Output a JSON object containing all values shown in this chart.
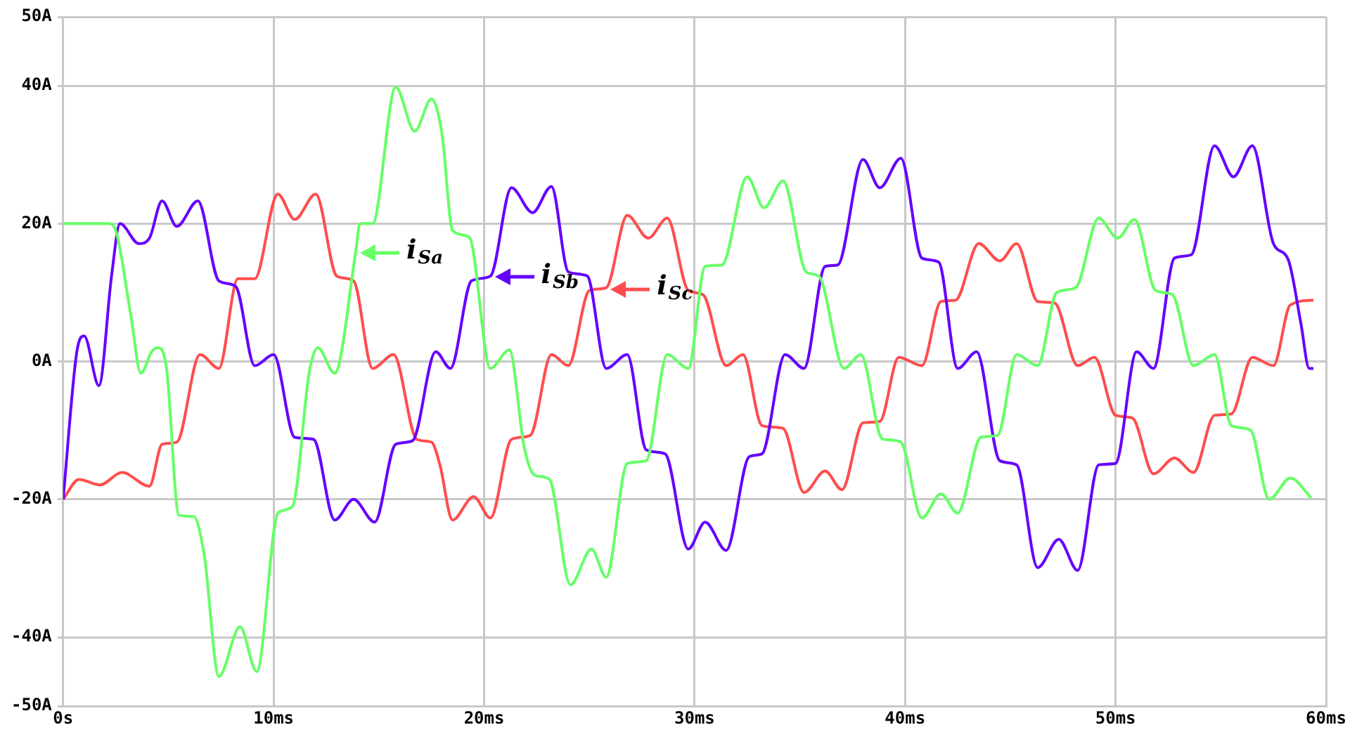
{
  "chart_data": {
    "type": "line",
    "xlim": [
      0,
      60
    ],
    "ylim": [
      -50,
      50
    ],
    "xticks": [
      {
        "value": 0,
        "label": "0s"
      },
      {
        "value": 10,
        "label": "10ms"
      },
      {
        "value": 20,
        "label": "20ms"
      },
      {
        "value": 30,
        "label": "30ms"
      },
      {
        "value": 40,
        "label": "40ms"
      },
      {
        "value": 50,
        "label": "50ms"
      },
      {
        "value": 60,
        "label": "60ms"
      }
    ],
    "yticks": [
      {
        "value": -50,
        "label": "-50A"
      },
      {
        "value": -40,
        "label": "-40A"
      },
      {
        "value": -20,
        "label": "-20A"
      },
      {
        "value": 0,
        "label": "0A"
      },
      {
        "value": 20,
        "label": "20A"
      },
      {
        "value": 40,
        "label": "40A"
      },
      {
        "value": 50,
        "label": "50A"
      }
    ],
    "grid": true,
    "legend": false,
    "marker": "none",
    "line_style": "solid",
    "annotations": [
      {
        "text": "i$_{Sa}$",
        "x": 13.9,
        "y": 15.9
      },
      {
        "text": "i$_{Sb}$",
        "x": 20.3,
        "y": 12.4
      },
      {
        "text": "i$_{Sc}$",
        "x": 25.8,
        "y": 10.7
      }
    ],
    "series": [
      {
        "color": "#66ff66",
        "x": [
          0,
          2.15,
          2.5,
          3.2,
          3.7,
          4.2,
          4.5,
          4.9,
          5.5,
          6.2,
          6.7,
          7.4,
          8.4,
          9.2,
          10.2,
          10.9,
          11.7,
          12.1,
          12.9,
          13.9,
          14.1,
          14.7,
          15.8,
          16.7,
          17.5,
          18.0,
          18.5,
          19.3,
          20.3,
          21.2,
          21.9,
          22.4,
          23.1,
          24.1,
          25.1,
          25.8,
          26.8,
          27.7,
          28.7,
          29.7,
          30.5,
          31.3,
          32.5,
          33.3,
          34.2,
          35.3,
          35.9,
          37.1,
          37.9,
          38.8,
          39.0,
          39.8,
          40.8,
          41.7,
          42.5,
          43.6,
          44.4,
          45.3,
          46.3,
          47.2,
          48.1,
          49.2,
          50.1,
          50.9,
          51.9,
          52.7,
          53.7,
          54.7,
          55.5,
          56.4,
          57.3,
          58.3,
          59.3
        ],
        "values": [
          20,
          20,
          19,
          7,
          -1.7,
          1.4,
          2,
          -0.7,
          -22.3,
          -22.5,
          -28,
          -45.7,
          -38.5,
          -45,
          -22,
          -21,
          -1.4,
          2,
          -1.7,
          15.9,
          20,
          20,
          39.8,
          33.4,
          38.1,
          33,
          19,
          18,
          -1,
          1.7,
          -12.4,
          -16.5,
          -17.1,
          -32.4,
          -27.2,
          -31.3,
          -14.8,
          -14.4,
          1,
          -1,
          13.8,
          14,
          26.8,
          22.3,
          26.2,
          13,
          12.4,
          -1,
          1,
          -10.7,
          -11.3,
          -11.7,
          -22.7,
          -19.2,
          -22,
          -11,
          -10.7,
          1,
          -0.6,
          10,
          10.7,
          20.8,
          17.9,
          20.6,
          10.3,
          9.7,
          -0.6,
          1,
          -9.3,
          -9.9,
          -20,
          -16.9,
          -19.8
        ]
      },
      {
        "color": "#6600ff",
        "x": [
          0,
          0.65,
          1.0,
          1.7,
          2.3,
          2.7,
          3.6,
          4.1,
          4.7,
          5.4,
          6.4,
          7.4,
          8.2,
          9.1,
          10.0,
          11.0,
          11.9,
          12.9,
          13.8,
          14.8,
          15.8,
          16.6,
          17.7,
          18.4,
          19.4,
          20.3,
          21.3,
          22.3,
          23.2,
          24.0,
          24.9,
          25.8,
          26.8,
          27.7,
          28.6,
          29.7,
          30.5,
          31.5,
          32.6,
          33.2,
          34.3,
          35.2,
          36.2,
          36.8,
          38.0,
          38.8,
          39.8,
          40.8,
          41.6,
          42.5,
          43.4,
          44.5,
          45.3,
          46.3,
          47.3,
          48.2,
          49.2,
          50.0,
          51.0,
          51.8,
          52.8,
          53.6,
          54.7,
          55.6,
          56.5,
          57.5,
          58.2,
          58.8,
          59.2,
          59.4
        ],
        "values": [
          -20,
          1.4,
          3.7,
          -3.5,
          12.4,
          20,
          17.1,
          17.9,
          23.3,
          19.6,
          23.3,
          11.7,
          10.9,
          -0.6,
          1,
          -11,
          -11.3,
          -23,
          -20,
          -23.3,
          -12,
          -11.5,
          1.4,
          -1,
          11.7,
          12.4,
          25.2,
          21.6,
          25.4,
          13,
          12.4,
          -1,
          1,
          -12.8,
          -13.4,
          -27.2,
          -23.3,
          -27.4,
          -13.8,
          -13.4,
          1,
          -1,
          13.8,
          14,
          29.3,
          25.2,
          29.5,
          15,
          14.4,
          -1,
          1.4,
          -14.4,
          -15,
          -29.9,
          -25.8,
          -30.3,
          -15,
          -14.8,
          1.4,
          -1,
          15,
          15.5,
          31.3,
          26.8,
          31.3,
          17.1,
          14.8,
          5.6,
          -1,
          -1
        ]
      },
      {
        "color": "#ff4d4d",
        "x": [
          0,
          0.75,
          1.75,
          2.8,
          4.1,
          4.7,
          5.4,
          6.5,
          7.4,
          8.3,
          9.1,
          10.2,
          11.0,
          12.0,
          13.0,
          13.8,
          14.7,
          15.7,
          16.8,
          17.5,
          17.9,
          18.5,
          19.5,
          20.3,
          21.3,
          22.2,
          23.2,
          24.0,
          25.0,
          25.8,
          26.8,
          27.8,
          28.7,
          29.7,
          30.4,
          31.5,
          32.3,
          33.2,
          34.2,
          35.2,
          36.2,
          37.0,
          38.0,
          38.8,
          39.7,
          40.8,
          41.7,
          42.4,
          43.5,
          44.5,
          45.3,
          46.3,
          47.1,
          48.2,
          49.0,
          50.0,
          50.8,
          51.8,
          52.8,
          53.7,
          54.7,
          55.5,
          56.5,
          57.5,
          58.3,
          59.4
        ],
        "values": [
          -20,
          -17.1,
          -17.9,
          -16.1,
          -18.1,
          -12,
          -11.7,
          1,
          -1,
          12,
          12,
          24.3,
          20.6,
          24.3,
          12.4,
          11.7,
          -1,
          1,
          -11.3,
          -11.7,
          -15,
          -23,
          -19.6,
          -22.7,
          -11.3,
          -10.7,
          1,
          -0.6,
          10.3,
          10.7,
          21.2,
          17.9,
          20.8,
          10.3,
          9.7,
          -0.6,
          1,
          -9.3,
          -9.7,
          -19,
          -15.9,
          -18.6,
          -8.9,
          -8.7,
          0.6,
          -0.6,
          8.7,
          8.9,
          17.1,
          14.6,
          17.1,
          8.7,
          8.5,
          -0.6,
          0.6,
          -7.8,
          -8.2,
          -16.3,
          -14,
          -16.1,
          -7.8,
          -7.6,
          0.6,
          -0.6,
          8.2,
          8.9
        ]
      }
    ]
  }
}
